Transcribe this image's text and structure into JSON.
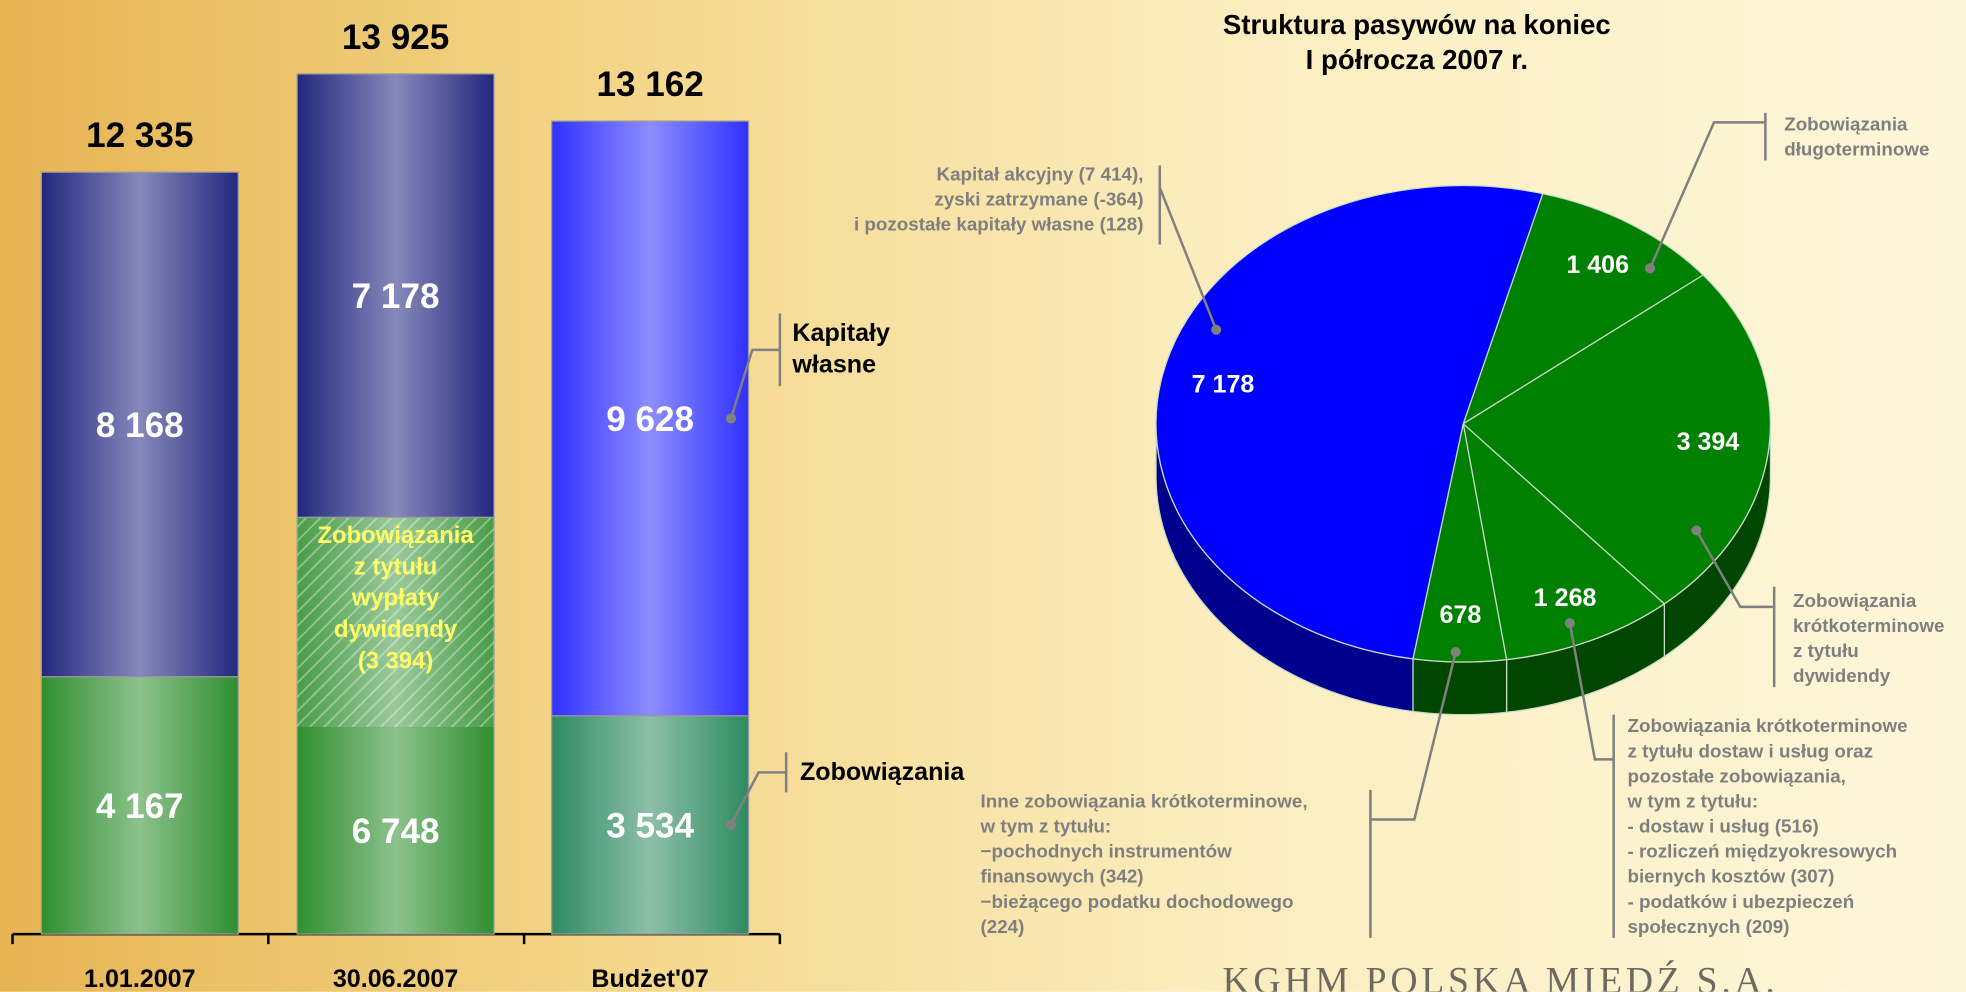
{
  "chart_data": [
    {
      "type": "stacked_bar",
      "categories": [
        "1.01.2007",
        "30.06.2007",
        "Budżet'07"
      ],
      "series": [
        {
          "name": "Zobowiązania",
          "colors": [
            "#2f8f2f",
            "#2f8f2f",
            "#2e8b62"
          ],
          "values": [
            4167,
            6748,
            3534
          ],
          "value_labels": [
            "4 167",
            "6 748",
            "3 534"
          ]
        },
        {
          "name": "Kapitały własne",
          "colors": [
            "#23287f",
            "#23287f",
            "#3030ff"
          ],
          "values": [
            8168,
            7178,
            9628
          ],
          "value_labels": [
            "8 168",
            "7 178",
            "9 628"
          ]
        }
      ],
      "totals": [
        12335,
        13925,
        13162
      ],
      "total_labels": [
        "12 335",
        "13 925",
        "13 162"
      ],
      "annotation": {
        "category": "30.06.2007",
        "text": "Zobowiązania\nz tytułu\nwypłaty\ndywidendy",
        "value": 3394,
        "value_label": "(3 394)"
      }
    },
    {
      "type": "pie",
      "title": "Struktura pasywów na koniec\nI półrocza 2007 r.",
      "values": [
        1406,
        3394,
        1268,
        678,
        7178
      ],
      "value_labels": [
        "1 406",
        "3 394",
        "1 268",
        "678",
        "7 178"
      ],
      "colors": [
        "#008000",
        "#008000",
        "#008000",
        "#008000",
        "#0000ff"
      ],
      "callouts": [
        "Zobowiązania\ndługoterminowe",
        "Zobowiązania\nkrótkoterminowe\nz tytułu\ndywidendy",
        "Zobowiązania krótkoterminowe\n   z tytułu dostaw i usług oraz\n   pozostałe zobowiązania,\n   w tym z tytułu:\n-  dostaw i usług (516)\n-  rozliczeń międzyokresowych\n   biernych kosztów (307)\n-  podatków i ubezpieczeń\n   społecznych (209)",
        "Inne zobowiązania krótkoterminowe,\nw tym z tytułu:\n−pochodnych instrumentów\nfinansowych (342)\n−bieżącego podatku dochodowego\n(224)",
        "Kapitał akcyjny (7 414),\nzyski zatrzymane (-364)\ni pozostałe kapitały własne (128)"
      ]
    }
  ],
  "logo": "KGHM POLSKA MIEDŹ S.A."
}
